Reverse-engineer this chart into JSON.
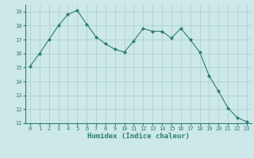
{
  "x": [
    0,
    1,
    2,
    3,
    4,
    5,
    6,
    7,
    8,
    9,
    10,
    11,
    12,
    13,
    14,
    15,
    16,
    17,
    18,
    19,
    20,
    21,
    22,
    23
  ],
  "y": [
    15.1,
    16.0,
    17.0,
    18.0,
    18.8,
    19.1,
    18.1,
    17.2,
    16.7,
    16.3,
    16.1,
    16.9,
    17.8,
    17.6,
    17.6,
    17.1,
    17.8,
    17.0,
    16.1,
    14.4,
    13.3,
    12.1,
    11.4,
    11.1
  ],
  "line_color": "#2e7d6e",
  "marker": "D",
  "marker_size": 2.0,
  "linewidth": 0.8,
  "bg_color": "#cce8e8",
  "grid_color": "#aacccc",
  "xlabel": "Humidex (Indice chaleur)",
  "ylim": [
    11,
    19.5
  ],
  "xlim": [
    -0.5,
    23.5
  ],
  "yticks": [
    11,
    12,
    13,
    14,
    15,
    16,
    17,
    18,
    19
  ],
  "xticks": [
    0,
    1,
    2,
    3,
    4,
    5,
    6,
    7,
    8,
    9,
    10,
    11,
    12,
    13,
    14,
    15,
    16,
    17,
    18,
    19,
    20,
    21,
    22,
    23
  ],
  "tick_fontsize": 5.0,
  "xlabel_fontsize": 6.5
}
